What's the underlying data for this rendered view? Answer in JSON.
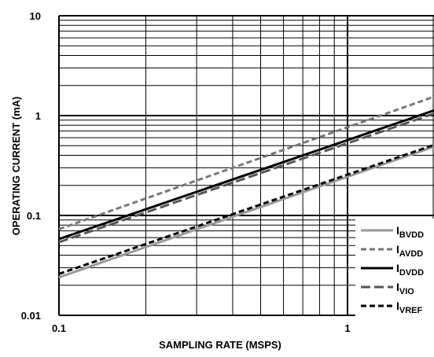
{
  "chart_data": {
    "type": "line",
    "xlabel": "SAMPLING RATE (MSPS)",
    "ylabel": "OPERATING CURRENT (mA)",
    "xscale": "log",
    "yscale": "log",
    "xlim": [
      0.1,
      2
    ],
    "ylim": [
      0.01,
      10
    ],
    "grid": true,
    "legend_position": "bottom-right",
    "x_ticks": [
      0.1,
      1
    ],
    "x_tick_labels": [
      "0.1",
      "1"
    ],
    "y_ticks": [
      0.01,
      0.1,
      1,
      10
    ],
    "y_tick_labels": [
      "0.01",
      "0.1",
      "1",
      "10"
    ],
    "series": [
      {
        "name": "I",
        "sub": "BVDD",
        "color": "#999999",
        "dash": "solid",
        "x": [
          0.1,
          2
        ],
        "y": [
          0.024,
          0.49
        ]
      },
      {
        "name": "I",
        "sub": "AVDD",
        "color": "#777777",
        "dash": "short-dash",
        "x": [
          0.1,
          2
        ],
        "y": [
          0.073,
          1.55
        ]
      },
      {
        "name": "I",
        "sub": "DVDD",
        "color": "#000000",
        "dash": "solid",
        "x": [
          0.1,
          2
        ],
        "y": [
          0.058,
          1.13
        ]
      },
      {
        "name": "I",
        "sub": "VIO",
        "color": "#555555",
        "dash": "long-dash",
        "x": [
          0.1,
          2
        ],
        "y": [
          0.054,
          1.05
        ]
      },
      {
        "name": "I",
        "sub": "VREF",
        "color": "#000000",
        "dash": "short-dash",
        "x": [
          0.1,
          2
        ],
        "y": [
          0.026,
          0.51
        ]
      }
    ]
  }
}
